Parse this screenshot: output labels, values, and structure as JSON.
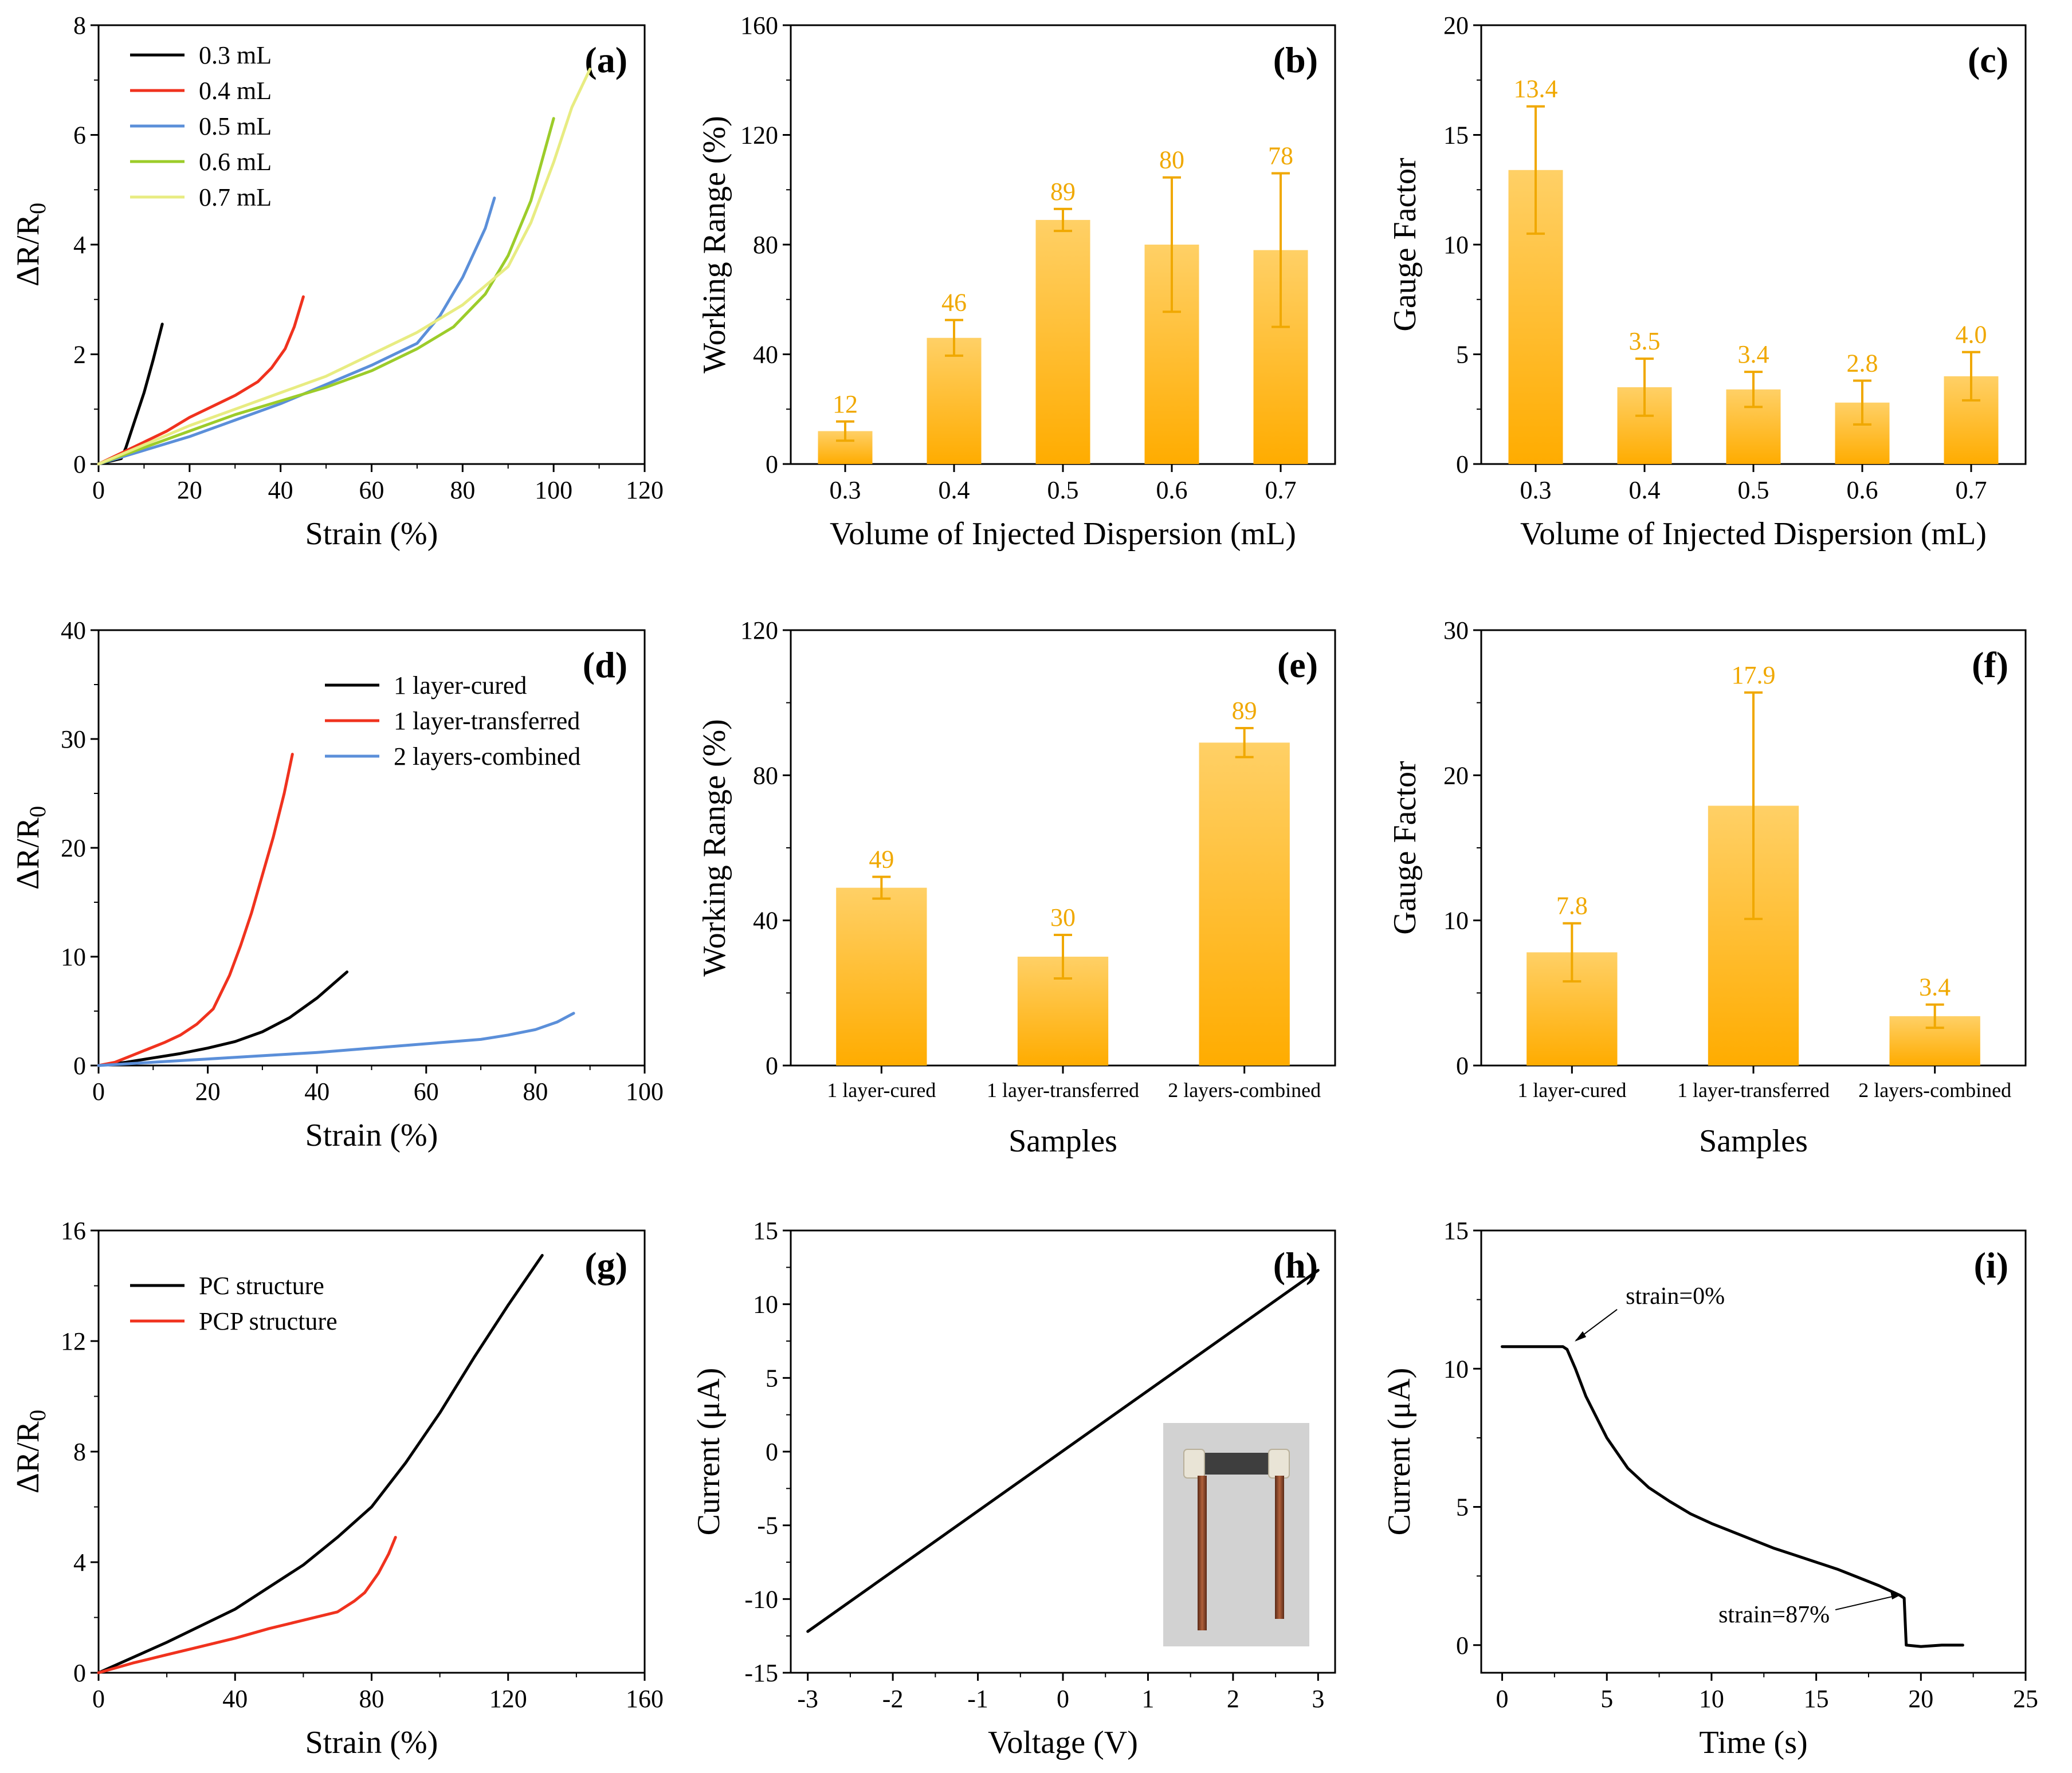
{
  "colors": {
    "black": "#000000",
    "red": "#f0321e",
    "blue": "#5b8fd9",
    "green": "#9ccc2a",
    "lightyellow": "#e8ec82",
    "bar_top": "#ffd066",
    "bar_bottom": "#ffac00",
    "bar_label": "#f0a800",
    "photo_bg": "#d2d2d2"
  },
  "chart_data": [
    {
      "id": "a",
      "letter": "(a)",
      "type": "line",
      "xlabel": "Strain (%)",
      "ylabel": "ΔR/R0",
      "xlim": [
        0,
        120
      ],
      "ylim": [
        0,
        8
      ],
      "xticks": [
        0,
        20,
        40,
        60,
        80,
        100,
        120
      ],
      "yticks": [
        0,
        2,
        4,
        6,
        8
      ],
      "series": [
        {
          "name": "0.3 mL",
          "color": "black",
          "points": [
            [
              0,
              0
            ],
            [
              5,
              0.1
            ],
            [
              6,
              0.3
            ],
            [
              8,
              0.8
            ],
            [
              10,
              1.3
            ],
            [
              12,
              1.9
            ],
            [
              14,
              2.55
            ]
          ]
        },
        {
          "name": "0.4 mL",
          "color": "red",
          "points": [
            [
              0,
              0
            ],
            [
              5,
              0.2
            ],
            [
              10,
              0.4
            ],
            [
              15,
              0.6
            ],
            [
              20,
              0.85
            ],
            [
              25,
              1.05
            ],
            [
              30,
              1.25
            ],
            [
              35,
              1.5
            ],
            [
              38,
              1.75
            ],
            [
              41,
              2.1
            ],
            [
              43,
              2.5
            ],
            [
              45,
              3.05
            ]
          ]
        },
        {
          "name": "0.5 mL",
          "color": "blue",
          "points": [
            [
              0,
              0
            ],
            [
              10,
              0.25
            ],
            [
              20,
              0.5
            ],
            [
              30,
              0.8
            ],
            [
              40,
              1.1
            ],
            [
              50,
              1.45
            ],
            [
              60,
              1.8
            ],
            [
              70,
              2.2
            ],
            [
              75,
              2.7
            ],
            [
              80,
              3.4
            ],
            [
              85,
              4.3
            ],
            [
              87,
              4.85
            ]
          ]
        },
        {
          "name": "0.6 mL",
          "color": "green",
          "points": [
            [
              0,
              0
            ],
            [
              10,
              0.3
            ],
            [
              20,
              0.6
            ],
            [
              30,
              0.9
            ],
            [
              40,
              1.15
            ],
            [
              50,
              1.4
            ],
            [
              60,
              1.7
            ],
            [
              70,
              2.1
            ],
            [
              78,
              2.5
            ],
            [
              85,
              3.1
            ],
            [
              90,
              3.8
            ],
            [
              95,
              4.8
            ],
            [
              100,
              6.3
            ]
          ]
        },
        {
          "name": "0.7 mL",
          "color": "lightyellow",
          "points": [
            [
              0,
              0
            ],
            [
              10,
              0.35
            ],
            [
              20,
              0.7
            ],
            [
              30,
              1.0
            ],
            [
              40,
              1.3
            ],
            [
              50,
              1.6
            ],
            [
              60,
              2.0
            ],
            [
              70,
              2.4
            ],
            [
              80,
              2.9
            ],
            [
              90,
              3.6
            ],
            [
              95,
              4.4
            ],
            [
              100,
              5.5
            ],
            [
              104,
              6.5
            ],
            [
              108,
              7.2
            ]
          ]
        }
      ]
    },
    {
      "id": "b",
      "letter": "(b)",
      "type": "bar",
      "xlabel": "Volume of Injected Dispersion (mL)",
      "ylabel": "Working Range (%)",
      "ylim": [
        0,
        160
      ],
      "yticks": [
        0,
        40,
        80,
        120,
        160
      ],
      "categories": [
        "0.3",
        "0.4",
        "0.5",
        "0.6",
        "0.7"
      ],
      "values": [
        12,
        46,
        89,
        80,
        78
      ],
      "errors": [
        3.5,
        6.5,
        4,
        24.5,
        28
      ],
      "labels": [
        "12",
        "46",
        "89",
        "80",
        "78"
      ]
    },
    {
      "id": "c",
      "letter": "(c)",
      "type": "bar",
      "xlabel": "Volume of Injected Dispersion (mL)",
      "ylabel": "Gauge Factor",
      "ylim": [
        0,
        20
      ],
      "yticks": [
        0,
        5,
        10,
        15,
        20
      ],
      "categories": [
        "0.3",
        "0.4",
        "0.5",
        "0.6",
        "0.7"
      ],
      "values": [
        13.4,
        3.5,
        3.4,
        2.8,
        4.0
      ],
      "errors": [
        2.9,
        1.3,
        0.8,
        1.0,
        1.1
      ],
      "labels": [
        "13.4",
        "3.5",
        "3.4",
        "2.8",
        "4.0"
      ]
    },
    {
      "id": "d",
      "letter": "(d)",
      "type": "line",
      "xlabel": "Strain (%)",
      "ylabel": "ΔR/R0",
      "xlim": [
        0,
        100
      ],
      "ylim": [
        0,
        40
      ],
      "xticks": [
        0,
        20,
        40,
        60,
        80,
        100
      ],
      "yticks": [
        0,
        10,
        20,
        30,
        40
      ],
      "series": [
        {
          "name": "1 layer-cured",
          "color": "black",
          "points": [
            [
              0,
              0
            ],
            [
              5,
              0.3
            ],
            [
              10,
              0.7
            ],
            [
              15,
              1.1
            ],
            [
              20,
              1.6
            ],
            [
              25,
              2.2
            ],
            [
              30,
              3.1
            ],
            [
              35,
              4.4
            ],
            [
              40,
              6.2
            ],
            [
              45.5,
              8.6
            ]
          ]
        },
        {
          "name": "1 layer-transferred",
          "color": "red",
          "points": [
            [
              0,
              0
            ],
            [
              3,
              0.3
            ],
            [
              6,
              0.9
            ],
            [
              9,
              1.5
            ],
            [
              12,
              2.1
            ],
            [
              15,
              2.8
            ],
            [
              18,
              3.8
            ],
            [
              21,
              5.2
            ],
            [
              24,
              8.3
            ],
            [
              26,
              11
            ],
            [
              28,
              14
            ],
            [
              30,
              17.5
            ],
            [
              32,
              21
            ],
            [
              34,
              25
            ],
            [
              35.5,
              28.6
            ]
          ]
        },
        {
          "name": "2 layers-combined",
          "color": "blue",
          "points": [
            [
              0,
              0
            ],
            [
              10,
              0.3
            ],
            [
              20,
              0.6
            ],
            [
              30,
              0.9
            ],
            [
              40,
              1.2
            ],
            [
              50,
              1.6
            ],
            [
              60,
              2.0
            ],
            [
              70,
              2.4
            ],
            [
              75,
              2.8
            ],
            [
              80,
              3.3
            ],
            [
              84,
              4.0
            ],
            [
              87,
              4.8
            ]
          ]
        }
      ]
    },
    {
      "id": "e",
      "letter": "(e)",
      "type": "bar",
      "xlabel": "Samples",
      "ylabel": "Working Range (%)",
      "ylim": [
        0,
        120
      ],
      "yticks": [
        0,
        40,
        80,
        120
      ],
      "categories": [
        "1 layer-cured",
        "1 layer-transferred",
        "2 layers-combined"
      ],
      "values": [
        49,
        30,
        89
      ],
      "errors": [
        3,
        6,
        4
      ],
      "labels": [
        "49",
        "30",
        "89"
      ]
    },
    {
      "id": "f",
      "letter": "(f)",
      "type": "bar",
      "xlabel": "Samples",
      "ylabel": "Gauge Factor",
      "ylim": [
        0,
        30
      ],
      "yticks": [
        0,
        10,
        20,
        30
      ],
      "categories": [
        "1 layer-cured",
        "1 layer-transferred",
        "2 layers-combined"
      ],
      "values": [
        7.8,
        17.9,
        3.4
      ],
      "errors": [
        2.0,
        7.8,
        0.8
      ],
      "labels": [
        "7.8",
        "17.9",
        "3.4"
      ]
    },
    {
      "id": "g",
      "letter": "(g)",
      "type": "line",
      "xlabel": "Strain (%)",
      "ylabel": "ΔR/R0",
      "xlim": [
        0,
        160
      ],
      "ylim": [
        0,
        16
      ],
      "xticks": [
        0,
        40,
        80,
        120,
        160
      ],
      "yticks": [
        0,
        4,
        8,
        12,
        16
      ],
      "series": [
        {
          "name": "PC structure",
          "color": "black",
          "points": [
            [
              0,
              0
            ],
            [
              20,
              1.1
            ],
            [
              40,
              2.3
            ],
            [
              60,
              3.9
            ],
            [
              70,
              4.9
            ],
            [
              80,
              6.0
            ],
            [
              90,
              7.6
            ],
            [
              100,
              9.4
            ],
            [
              110,
              11.4
            ],
            [
              120,
              13.3
            ],
            [
              130,
              15.1
            ]
          ]
        },
        {
          "name": "PCP structure",
          "color": "red",
          "points": [
            [
              0,
              0
            ],
            [
              10,
              0.35
            ],
            [
              20,
              0.65
            ],
            [
              30,
              0.95
            ],
            [
              40,
              1.25
            ],
            [
              50,
              1.6
            ],
            [
              60,
              1.9
            ],
            [
              70,
              2.2
            ],
            [
              75,
              2.6
            ],
            [
              78,
              2.9
            ],
            [
              82,
              3.6
            ],
            [
              85,
              4.3
            ],
            [
              87,
              4.9
            ]
          ]
        }
      ]
    },
    {
      "id": "h",
      "letter": "(h)",
      "type": "line",
      "xlabel": "Voltage (V)",
      "ylabel": "Current (μA)",
      "xlim": [
        -3.2,
        3.2
      ],
      "ylim": [
        -15,
        15
      ],
      "xticks": [
        -3,
        -2,
        -1,
        0,
        1,
        2,
        3
      ],
      "yticks": [
        -15,
        -10,
        -5,
        0,
        5,
        10,
        15
      ],
      "series": [
        {
          "name": "",
          "color": "black",
          "points": [
            [
              -3,
              -12.2
            ],
            [
              3,
              12.3
            ]
          ]
        }
      ]
    },
    {
      "id": "i",
      "letter": "(i)",
      "type": "line",
      "xlabel": "Time (s)",
      "ylabel": "Current (μA)",
      "xlim": [
        -1,
        25
      ],
      "ylim": [
        -1,
        15
      ],
      "xticks": [
        0,
        5,
        10,
        15,
        20,
        25
      ],
      "yticks": [
        0,
        5,
        10,
        15
      ],
      "annotations": [
        "strain=0%",
        "strain=87%"
      ],
      "series": [
        {
          "name": "",
          "color": "black",
          "points": [
            [
              0,
              10.8
            ],
            [
              2.9,
              10.8
            ],
            [
              3.1,
              10.7
            ],
            [
              3.5,
              10.0
            ],
            [
              4,
              9.0
            ],
            [
              5,
              7.5
            ],
            [
              6,
              6.4
            ],
            [
              7,
              5.7
            ],
            [
              8,
              5.2
            ],
            [
              9,
              4.75
            ],
            [
              10,
              4.4
            ],
            [
              11,
              4.1
            ],
            [
              12,
              3.8
            ],
            [
              13,
              3.5
            ],
            [
              14,
              3.25
            ],
            [
              15,
              3.0
            ],
            [
              16,
              2.75
            ],
            [
              17,
              2.45
            ],
            [
              18,
              2.15
            ],
            [
              19,
              1.8
            ],
            [
              19.2,
              1.7
            ],
            [
              19.3,
              0.0
            ],
            [
              20,
              -0.05
            ],
            [
              21,
              0.0
            ],
            [
              22,
              0.0
            ]
          ]
        }
      ]
    }
  ]
}
